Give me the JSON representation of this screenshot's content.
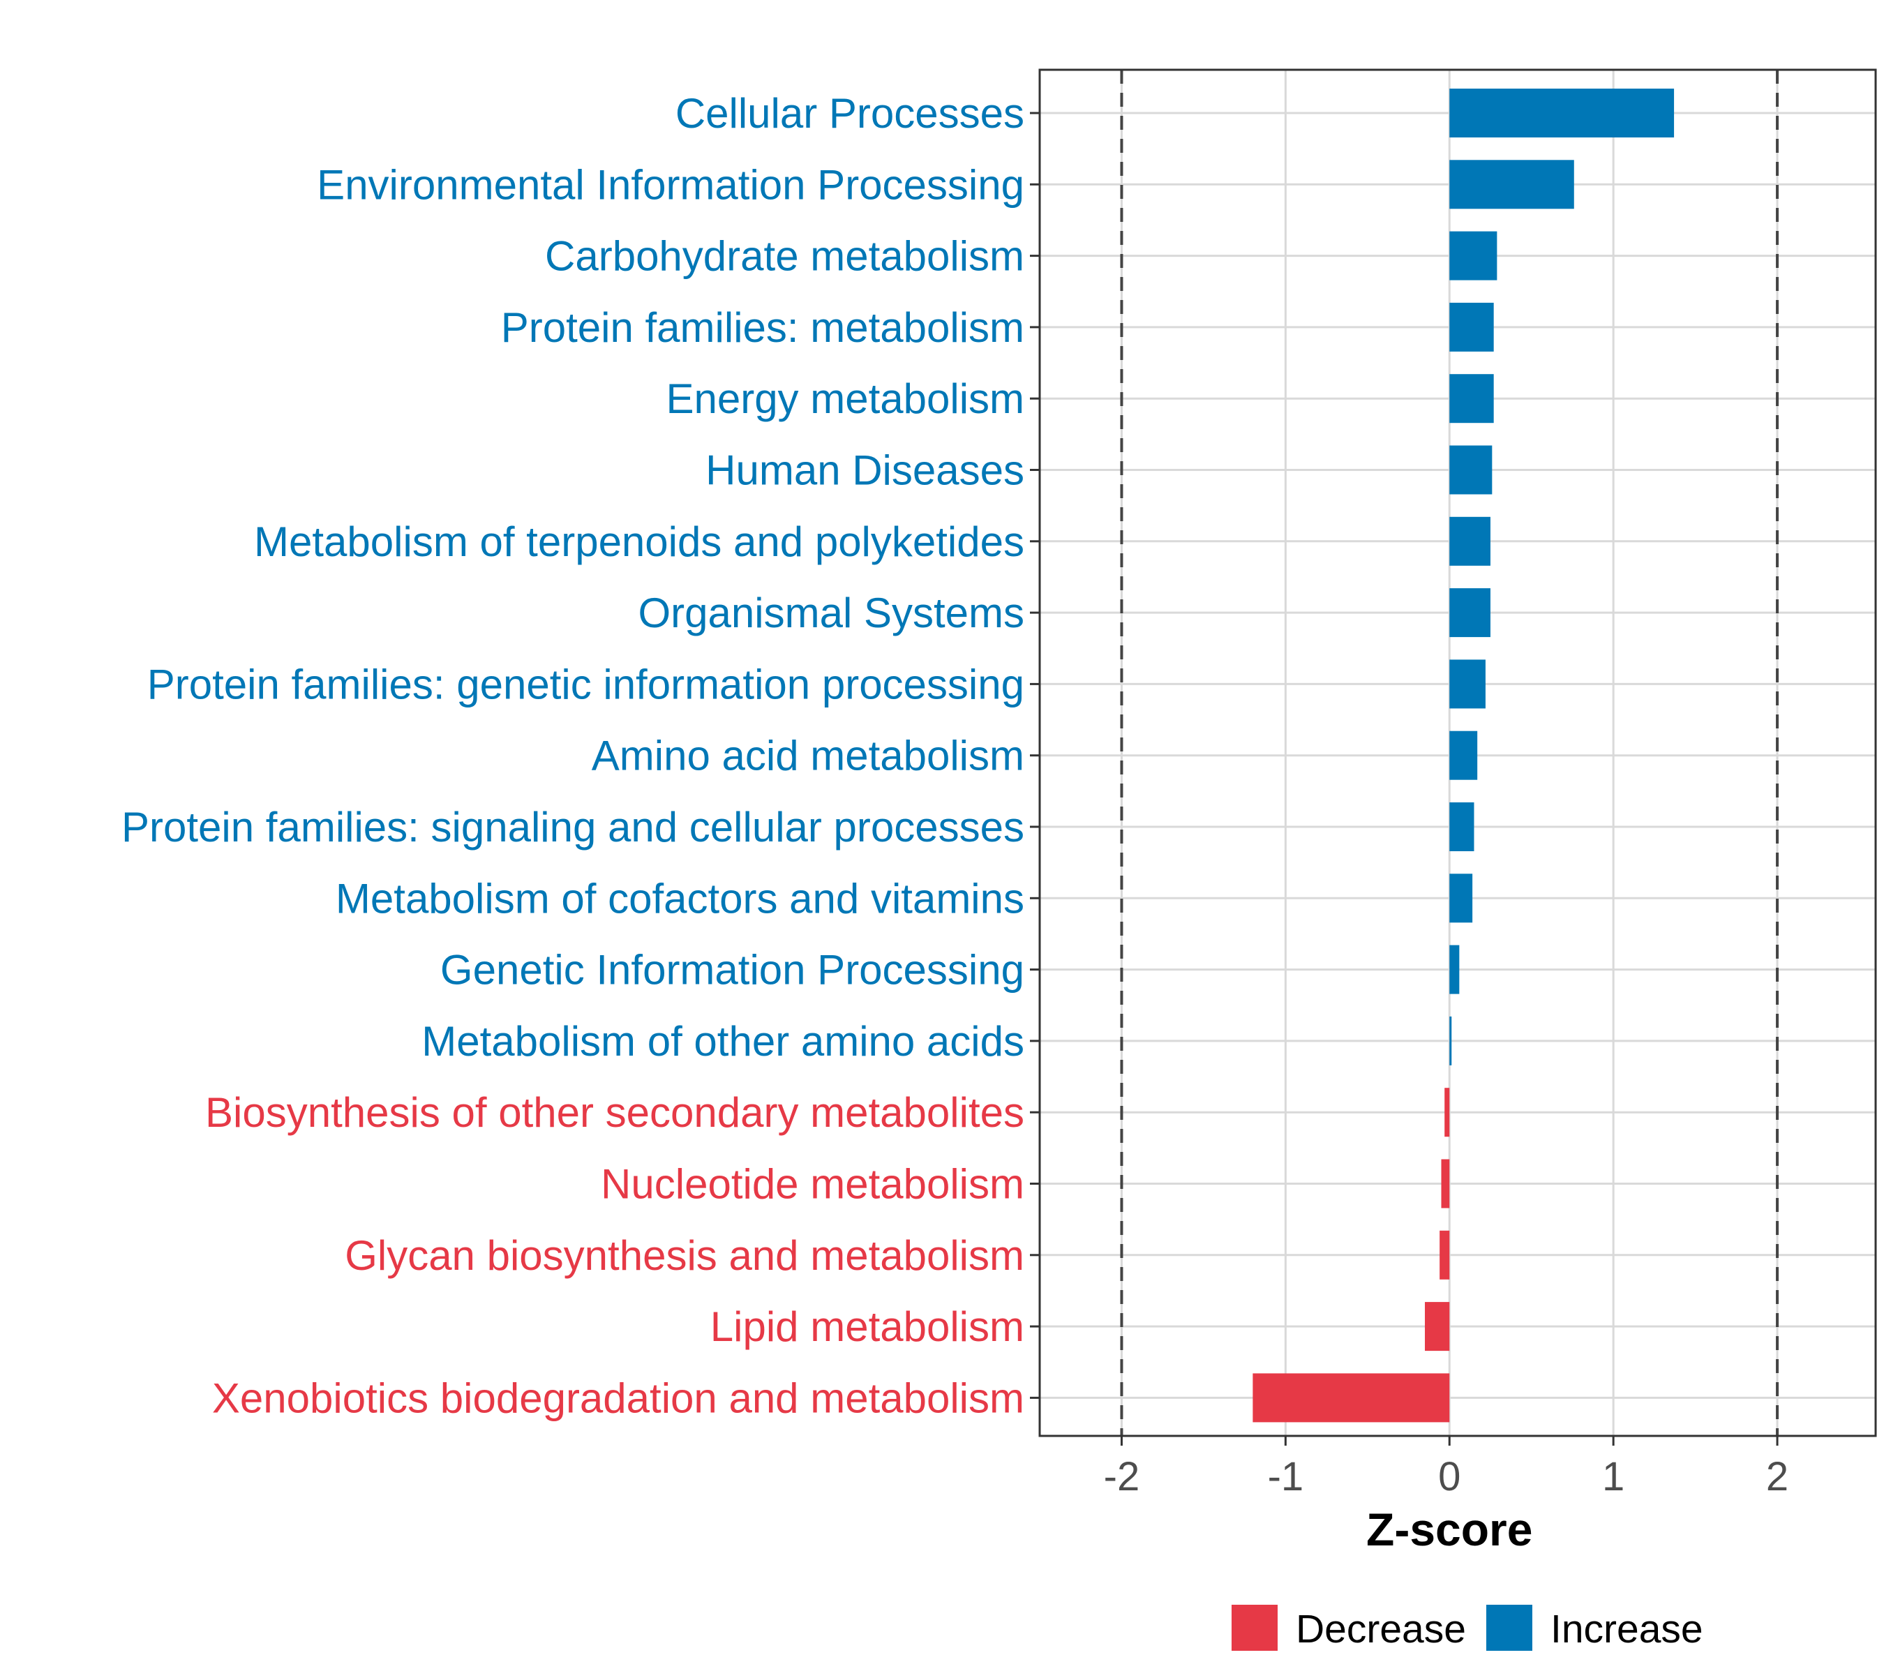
{
  "chart_data": {
    "type": "bar",
    "orientation": "horizontal",
    "title": "",
    "xlabel": "Z-score",
    "ylabel": "",
    "xlim": [
      -2.5,
      2.6
    ],
    "x_ticks": [
      -2,
      -1,
      0,
      1,
      2
    ],
    "reference_lines": [
      -2,
      2
    ],
    "grid": true,
    "categories": [
      "Cellular Processes",
      "Environmental Information Processing",
      "Carbohydrate metabolism",
      "Protein families: metabolism",
      "Energy metabolism",
      "Human Diseases",
      "Metabolism of terpenoids and polyketides",
      "Organismal Systems",
      "Protein families: genetic information processing",
      "Amino acid metabolism",
      "Protein families: signaling and cellular processes",
      "Metabolism of cofactors and vitamins",
      "Genetic Information Processing",
      "Metabolism of other amino acids",
      "Biosynthesis of other secondary metabolites",
      "Nucleotide metabolism",
      "Glycan biosynthesis and metabolism",
      "Lipid metabolism",
      "Xenobiotics biodegradation and metabolism"
    ],
    "values": [
      1.37,
      0.76,
      0.29,
      0.27,
      0.27,
      0.26,
      0.25,
      0.25,
      0.22,
      0.17,
      0.15,
      0.14,
      0.06,
      0.01,
      -0.03,
      -0.05,
      -0.06,
      -0.15,
      -1.2
    ],
    "groups": [
      "Increase",
      "Increase",
      "Increase",
      "Increase",
      "Increase",
      "Increase",
      "Increase",
      "Increase",
      "Increase",
      "Increase",
      "Increase",
      "Increase",
      "Increase",
      "Increase",
      "Decrease",
      "Decrease",
      "Decrease",
      "Decrease",
      "Decrease"
    ],
    "legend": {
      "position": "bottom",
      "entries": [
        {
          "label": "Decrease",
          "color": "#E63946"
        },
        {
          "label": "Increase",
          "color": "#0077B6"
        }
      ]
    },
    "colors": {
      "Increase": "#0077B6",
      "Decrease": "#E63946"
    }
  }
}
